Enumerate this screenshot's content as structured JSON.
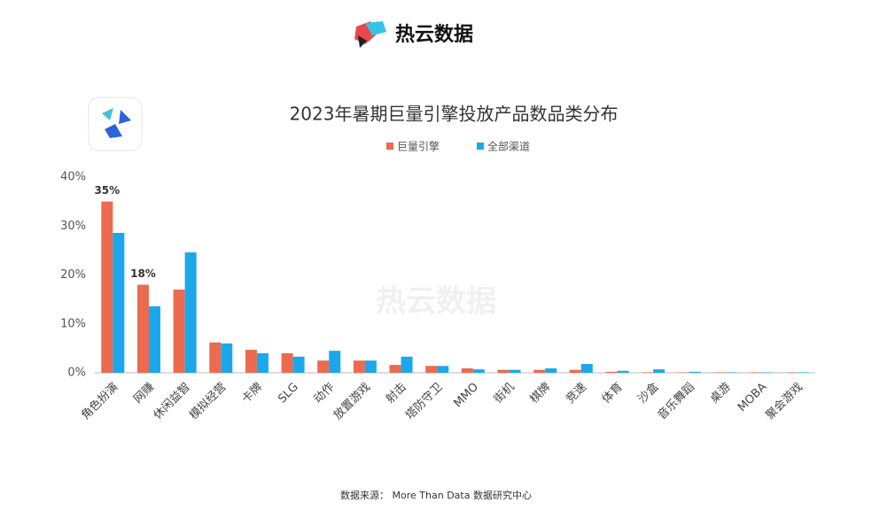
{
  "brand": "热云数据",
  "source": "数据来源： More Than Data 数据研究中心",
  "chart_data": {
    "type": "bar",
    "title": "2023年暑期巨量引擎投放产品数品类分布",
    "categories": [
      "角色扮演",
      "网赚",
      "休闲益智",
      "模拟经营",
      "卡牌",
      "SLG",
      "动作",
      "放置游戏",
      "射击",
      "塔防守卫",
      "MMO",
      "街机",
      "棋牌",
      "竞速",
      "体育",
      "沙盒",
      "音乐舞蹈",
      "桌游",
      "MOBA",
      "聚会游戏"
    ],
    "series": [
      {
        "name": "巨量引擎",
        "color": "#ec6a4f",
        "values": [
          35,
          18,
          17,
          6.2,
          4.7,
          4,
          2.5,
          2.5,
          1.6,
          1.4,
          0.9,
          0.6,
          0.6,
          0.6,
          0.2,
          0.1,
          0.1,
          0.1,
          0.1,
          0.1
        ],
        "value_labels": [
          "35%",
          "18%",
          null,
          null,
          null,
          null,
          null,
          null,
          null,
          null,
          null,
          null,
          null,
          null,
          null,
          null,
          null,
          null,
          null,
          null
        ]
      },
      {
        "name": "全部渠道",
        "color": "#1ba8ea",
        "values": [
          28.6,
          13.6,
          24.6,
          6,
          4,
          3.3,
          4.5,
          2.5,
          3.3,
          1.4,
          0.7,
          0.6,
          0.9,
          1.8,
          0.4,
          0.7,
          0.2,
          0.1,
          0.1,
          0.1
        ]
      }
    ],
    "ylim": [
      0,
      40
    ],
    "yticks": [
      {
        "value": 0,
        "label": "0%"
      },
      {
        "value": 10,
        "label": "10%"
      },
      {
        "value": 20,
        "label": "20%"
      },
      {
        "value": 30,
        "label": "30%"
      },
      {
        "value": 40,
        "label": "40%"
      }
    ],
    "legend": "top"
  }
}
